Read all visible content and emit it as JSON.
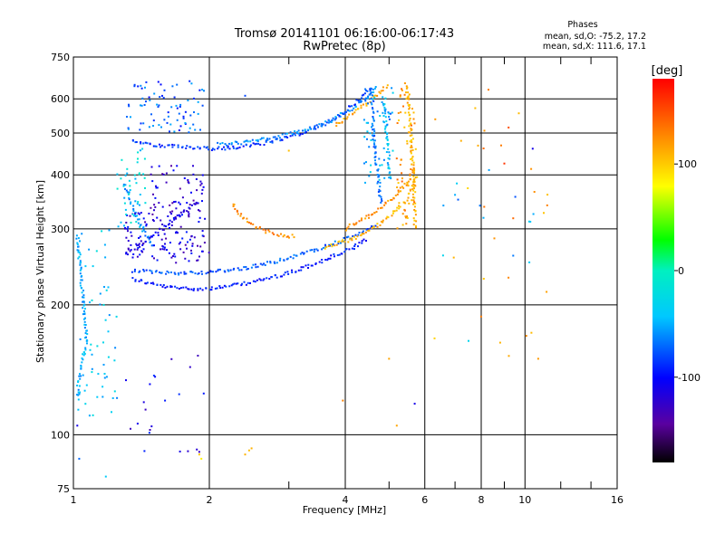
{
  "chart_data": {
    "type": "scatter",
    "title": "Tromsø 20141101 06:16:00-06:17:43",
    "subtitle": "RwPretec (8p)",
    "xlabel": "Frequency [MHz]",
    "ylabel": "Stationary phase Virtual Height [km]",
    "xscale": "log",
    "yscale": "log",
    "xlim": [
      1,
      16
    ],
    "ylim": [
      75,
      750
    ],
    "x_ticks": [
      1,
      2,
      4,
      6,
      8,
      10,
      16
    ],
    "x_minor_ticks": [
      3,
      5,
      7,
      9,
      12,
      14
    ],
    "y_ticks": [
      75,
      100,
      200,
      300,
      400,
      500,
      600,
      750
    ],
    "grid": true,
    "legend": {
      "title": "Phases",
      "lines": [
        "mean, sd,O: -75.2, 17.2",
        "mean, sd,X: 111.6, 17.1"
      ],
      "position": "top-right"
    },
    "colorbar": {
      "label": "[deg]",
      "range": [
        -180,
        180
      ],
      "ticks": [
        100,
        0,
        -100
      ],
      "colormap": "rainbow",
      "position": "right"
    },
    "traces": [
      {
        "points": [
          [
            1.35,
            230
          ],
          [
            1.45,
            225
          ],
          [
            1.6,
            220
          ],
          [
            1.8,
            218
          ],
          [
            2.0,
            218
          ],
          [
            2.3,
            222
          ],
          [
            2.6,
            228
          ],
          [
            3.0,
            237
          ],
          [
            3.4,
            248
          ],
          [
            3.8,
            260
          ],
          [
            4.2,
            272
          ],
          [
            4.5,
            285
          ]
        ],
        "phase": -95
      },
      {
        "points": [
          [
            1.35,
            240
          ],
          [
            1.5,
            238
          ],
          [
            1.7,
            237
          ],
          [
            2.0,
            238
          ],
          [
            2.4,
            243
          ],
          [
            2.8,
            252
          ],
          [
            3.2,
            262
          ],
          [
            3.6,
            272
          ],
          [
            4.0,
            283
          ],
          [
            4.4,
            295
          ],
          [
            4.7,
            308
          ]
        ],
        "phase": -75
      },
      {
        "points": [
          [
            3.6,
            272
          ],
          [
            3.9,
            278
          ],
          [
            4.2,
            285
          ],
          [
            4.5,
            296
          ],
          [
            4.8,
            310
          ],
          [
            5.1,
            325
          ],
          [
            5.4,
            345
          ],
          [
            5.6,
            370
          ],
          [
            5.75,
            400
          ]
        ],
        "phase": 110
      },
      {
        "points": [
          [
            4.0,
            300
          ],
          [
            4.3,
            312
          ],
          [
            4.6,
            325
          ],
          [
            4.9,
            342
          ],
          [
            5.2,
            360
          ],
          [
            5.5,
            385
          ],
          [
            5.7,
            420
          ]
        ],
        "phase": 125
      },
      {
        "points": [
          [
            1.35,
            480
          ],
          [
            1.5,
            470
          ],
          [
            1.7,
            465
          ],
          [
            1.9,
            460
          ],
          [
            2.1,
            460
          ],
          [
            2.4,
            465
          ],
          [
            2.8,
            480
          ],
          [
            3.2,
            500
          ],
          [
            3.6,
            525
          ],
          [
            4.0,
            560
          ],
          [
            4.3,
            600
          ],
          [
            4.55,
            640
          ]
        ],
        "phase": -85
      },
      {
        "points": [
          [
            2.1,
            470
          ],
          [
            2.5,
            478
          ],
          [
            2.9,
            492
          ],
          [
            3.3,
            510
          ],
          [
            3.7,
            532
          ],
          [
            4.1,
            565
          ],
          [
            4.4,
            600
          ],
          [
            4.7,
            638
          ]
        ],
        "phase": -60
      },
      {
        "points": [
          [
            3.8,
            520
          ],
          [
            4.1,
            548
          ],
          [
            4.4,
            580
          ],
          [
            4.7,
            615
          ],
          [
            5.0,
            645
          ]
        ],
        "phase": 115
      },
      {
        "points": [
          [
            5.45,
            650
          ],
          [
            5.5,
            600
          ],
          [
            5.55,
            540
          ],
          [
            5.6,
            480
          ],
          [
            5.65,
            420
          ],
          [
            5.68,
            370
          ],
          [
            5.7,
            330
          ],
          [
            5.72,
            300
          ]
        ],
        "phase": 110
      },
      {
        "points": [
          [
            4.55,
            640
          ],
          [
            4.6,
            580
          ],
          [
            4.62,
            520
          ],
          [
            4.65,
            460
          ],
          [
            4.7,
            420
          ],
          [
            4.75,
            380
          ],
          [
            4.8,
            340
          ]
        ],
        "phase": -70
      },
      {
        "points": [
          [
            4.85,
            600
          ],
          [
            4.9,
            540
          ],
          [
            4.95,
            480
          ],
          [
            5.0,
            430
          ],
          [
            5.05,
            390
          ]
        ],
        "phase": -45
      },
      {
        "points": [
          [
            2.25,
            345
          ],
          [
            2.35,
            320
          ],
          [
            2.5,
            305
          ],
          [
            2.7,
            295
          ],
          [
            2.9,
            290
          ],
          [
            3.1,
            288
          ]
        ],
        "phase": 125
      },
      {
        "points": [
          [
            1.02,
            290
          ],
          [
            1.03,
            260
          ],
          [
            1.04,
            230
          ],
          [
            1.05,
            205
          ],
          [
            1.06,
            185
          ],
          [
            1.07,
            165
          ],
          [
            1.05,
            150
          ],
          [
            1.03,
            135
          ],
          [
            1.02,
            120
          ]
        ],
        "phase": -50
      },
      {
        "points": [
          [
            1.3,
            265
          ],
          [
            1.4,
            275
          ],
          [
            1.5,
            290
          ],
          [
            1.6,
            305
          ],
          [
            1.7,
            320
          ],
          [
            1.8,
            335
          ],
          [
            1.9,
            345
          ]
        ],
        "phase": -110
      },
      {
        "points": [
          [
            1.3,
            380
          ],
          [
            1.35,
            340
          ],
          [
            1.4,
            310
          ],
          [
            1.45,
            290
          ],
          [
            1.5,
            270
          ]
        ],
        "phase": -60
      }
    ],
    "clusters": [
      {
        "x": [
          1.3,
          2.0
        ],
        "y": [
          250,
          330
        ],
        "phase": -115,
        "count": 120
      },
      {
        "x": [
          1.45,
          1.95
        ],
        "y": [
          320,
          420
        ],
        "phase": -120,
        "count": 60
      },
      {
        "x": [
          1.3,
          1.95
        ],
        "y": [
          500,
          660
        ],
        "phase": -75,
        "count": 80
      },
      {
        "x": [
          1.02,
          1.25
        ],
        "y": [
          110,
          300
        ],
        "phase": -40,
        "count": 60
      },
      {
        "x": [
          1.25,
          1.45
        ],
        "y": [
          300,
          470
        ],
        "phase": -30,
        "count": 45
      },
      {
        "x": [
          1.3,
          1.95
        ],
        "y": [
          90,
          160
        ],
        "phase": -110,
        "count": 22
      },
      {
        "x": [
          4.4,
          5.1
        ],
        "y": [
          380,
          640
        ],
        "phase": -50,
        "count": 55
      },
      {
        "x": [
          5.2,
          5.75
        ],
        "y": [
          300,
          640
        ],
        "phase": 120,
        "count": 60
      },
      {
        "x": [
          6.2,
          11.5
        ],
        "y": [
          150,
          660
        ],
        "phase": 115,
        "count": 26
      },
      {
        "x": [
          6.3,
          10.5
        ],
        "y": [
          250,
          450
        ],
        "phase": -55,
        "count": 14
      }
    ],
    "outliers": [
      {
        "x": 2.45,
        "y": 92,
        "phase": 105
      },
      {
        "x": 2.4,
        "y": 90,
        "phase": 110
      },
      {
        "x": 2.48,
        "y": 93,
        "phase": 110
      },
      {
        "x": 1.9,
        "y": 90,
        "phase": 100
      },
      {
        "x": 1.92,
        "y": 88,
        "phase": 85
      },
      {
        "x": 1.02,
        "y": 105,
        "phase": -110
      },
      {
        "x": 1.03,
        "y": 88,
        "phase": -70
      },
      {
        "x": 1.18,
        "y": 80,
        "phase": -40
      },
      {
        "x": 2.4,
        "y": 610,
        "phase": -80
      },
      {
        "x": 3.0,
        "y": 455,
        "phase": 105
      },
      {
        "x": 3.95,
        "y": 120,
        "phase": 130
      },
      {
        "x": 5.2,
        "y": 105,
        "phase": 115
      },
      {
        "x": 5.0,
        "y": 150,
        "phase": 115
      },
      {
        "x": 5.7,
        "y": 118,
        "phase": -110
      },
      {
        "x": 7.5,
        "y": 165,
        "phase": -30
      },
      {
        "x": 10.7,
        "y": 150,
        "phase": 120
      },
      {
        "x": 9.2,
        "y": 515,
        "phase": 150
      },
      {
        "x": 8.3,
        "y": 630,
        "phase": 130
      },
      {
        "x": 10.4,
        "y": 460,
        "phase": -110
      },
      {
        "x": 9.0,
        "y": 425,
        "phase": 160
      },
      {
        "x": 11.2,
        "y": 340,
        "phase": 130
      }
    ]
  }
}
